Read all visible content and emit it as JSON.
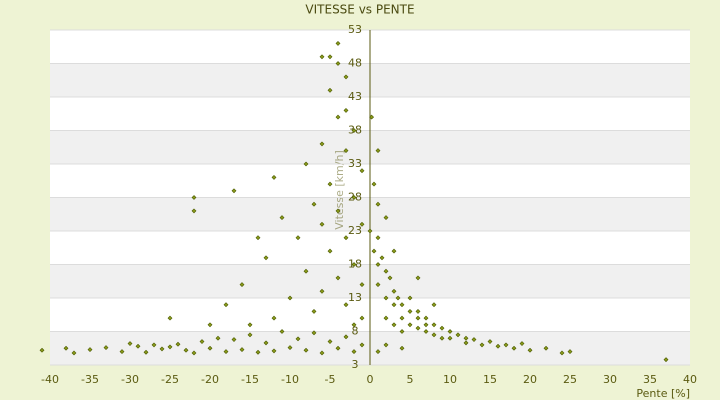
{
  "chart_data": {
    "type": "scatter",
    "title": "VITESSE vs PENTE",
    "x_label": "Pente [%]",
    "y_label": "Vitesse [km/h]",
    "color": "#8a9a1a",
    "xlim": [
      -40,
      40
    ],
    "xticks": [
      -40,
      -35,
      -30,
      -25,
      -20,
      -15,
      -10,
      -5,
      0,
      5,
      10,
      15,
      20,
      25,
      30,
      35,
      40
    ],
    "ylim": [
      3,
      53
    ],
    "yticks": [
      3,
      8,
      13,
      18,
      23,
      28,
      33,
      38,
      43,
      48,
      53
    ],
    "grid": true,
    "x": [
      -41,
      -38,
      -37,
      -35,
      -33,
      -31,
      -30,
      -29,
      -28,
      -27,
      -26,
      -25,
      -24,
      -23,
      -22,
      -21,
      -20,
      -19,
      -18,
      -17,
      -16,
      -15,
      -14,
      -13,
      -12,
      -11,
      -10,
      -9,
      -8,
      -7,
      -6,
      -5,
      -4,
      -3,
      -2,
      -1,
      -22,
      -22,
      -17,
      -13,
      -12,
      -11,
      -10,
      -9,
      -8,
      -8,
      -7,
      -7,
      -6,
      -6,
      -6,
      -5,
      -5,
      -5,
      -5,
      -4,
      -4,
      -4,
      -4,
      -3,
      -3,
      -3,
      -3,
      -2,
      -2,
      -2,
      -2,
      -1,
      -1,
      -1,
      -1,
      -18,
      -15,
      -20,
      -16,
      -14,
      -12,
      -25,
      -6,
      -4,
      -3,
      0,
      0.5,
      1,
      1,
      1,
      1.5,
      2,
      2,
      2,
      2.5,
      3,
      3,
      3,
      3.5,
      4,
      4,
      4,
      5,
      5,
      5,
      6,
      6,
      6,
      7,
      7,
      7,
      8,
      8,
      9,
      9,
      10,
      10,
      11,
      12,
      12,
      13,
      14,
      15,
      16,
      17,
      18,
      19,
      20,
      22,
      24,
      25,
      37,
      1,
      2,
      4,
      0.5,
      1,
      2,
      3,
      1,
      0.2,
      6,
      8
    ],
    "values": [
      5.2,
      5.5,
      4.8,
      5.3,
      5.6,
      5,
      6.2,
      5.8,
      4.9,
      6,
      5.4,
      5.7,
      6.1,
      5.2,
      4.8,
      6.5,
      5.5,
      7,
      5,
      6.8,
      5.3,
      7.5,
      4.9,
      6.3,
      5.1,
      8,
      5.6,
      6.9,
      5.2,
      7.8,
      4.8,
      6.5,
      5.5,
      7.2,
      5,
      6,
      28,
      26,
      29,
      19,
      31,
      25,
      13,
      22,
      33,
      17,
      27,
      11,
      36,
      24,
      14,
      49,
      44,
      30,
      20,
      51,
      40,
      26,
      16,
      46,
      35,
      22,
      12,
      38,
      28,
      18,
      9,
      32,
      24,
      15,
      10,
      12,
      9,
      9,
      15,
      22,
      10,
      10,
      49,
      48,
      41,
      23,
      20,
      22,
      18,
      15,
      19,
      17,
      13,
      10,
      16,
      14,
      12,
      9,
      13,
      12,
      10,
      8,
      11,
      9,
      13,
      10,
      8.5,
      11,
      9,
      10,
      8,
      9,
      7.5,
      8.5,
      7,
      8,
      7,
      7.5,
      7,
      6.3,
      6.8,
      6,
      6.5,
      5.8,
      6,
      5.5,
      6.2,
      5.2,
      5.5,
      4.8,
      5,
      3.8,
      5,
      6,
      5.5,
      30,
      27,
      25,
      20,
      35,
      40,
      16,
      12
    ]
  }
}
